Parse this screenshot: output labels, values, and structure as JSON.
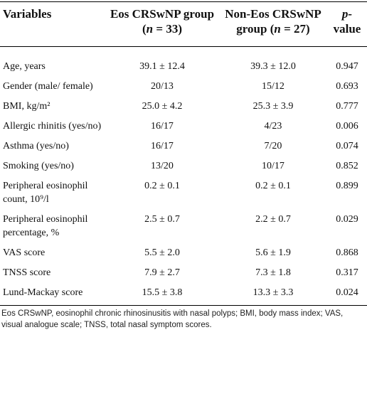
{
  "table": {
    "header": [
      [
        {
          "text": "Variables",
          "italic": false
        }
      ],
      [
        {
          "text": "Eos CRSwNP group (",
          "italic": false
        },
        {
          "text": "n",
          "italic": true
        },
        {
          "text": " = 33)",
          "italic": false
        }
      ],
      [
        {
          "text": "Non-Eos CRSwNP group (",
          "italic": false
        },
        {
          "text": "n",
          "italic": true
        },
        {
          "text": " = 27)",
          "italic": false
        }
      ],
      [
        {
          "text": "p-",
          "italic": true
        },
        {
          "text": " value",
          "italic": false
        }
      ]
    ],
    "rows": [
      [
        "Age, years",
        "39.1 ± 12.4",
        "39.3 ± 12.0",
        "0.947"
      ],
      [
        "Gender (male/ female)",
        "20/13",
        "15/12",
        "0.693"
      ],
      [
        "BMI, kg/m²",
        "25.0 ± 4.2",
        "25.3 ± 3.9",
        "0.777"
      ],
      [
        "Allergic rhinitis (yes/no)",
        "16/17",
        "4/23",
        "0.006"
      ],
      [
        "Asthma (yes/no)",
        "16/17",
        "7/20",
        "0.074"
      ],
      [
        "Smoking (yes/no)",
        "13/20",
        "10/17",
        "0.852"
      ],
      [
        "Peripheral eosinophil count, 10⁹/l",
        "0.2 ± 0.1",
        "0.2 ± 0.1",
        "0.899"
      ],
      [
        "Peripheral eosinophil percentage, %",
        "2.5 ± 0.7",
        "2.2 ± 0.7",
        "0.029"
      ],
      [
        "VAS score",
        "5.5 ± 2.0",
        "5.6 ± 1.9",
        "0.868"
      ],
      [
        "TNSS score",
        "7.9 ± 2.7",
        "7.3 ± 1.8",
        "0.317"
      ],
      [
        "Lund-Mackay score",
        "15.5 ± 3.8",
        "13.3 ± 3.3",
        "0.024"
      ]
    ]
  },
  "footnote": "Eos CRSwNP, eosinophil chronic rhinosinusitis with nasal polyps; BMI, body mass index; VAS, visual analogue scale; TNSS, total nasal symptom scores."
}
